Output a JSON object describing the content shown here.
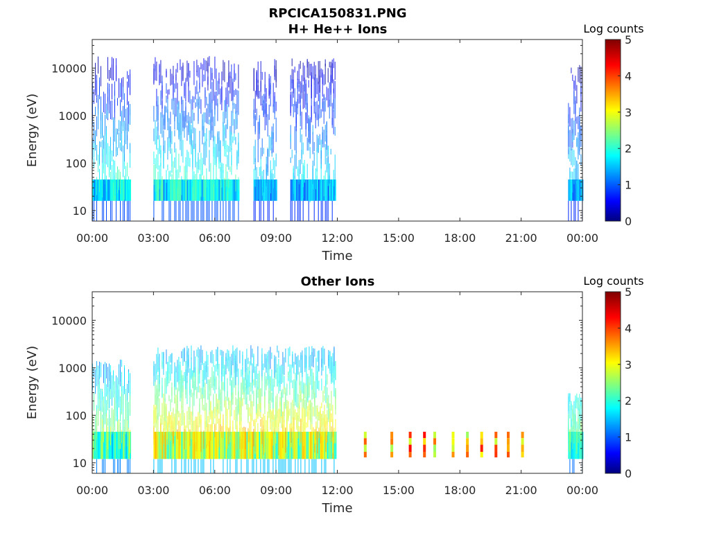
{
  "figure": {
    "title_line1": "RPCICA150831.PNG",
    "title_line2": "H+ He++ Ions",
    "bottom_title": "Other Ions"
  },
  "colors": {
    "colormap": [
      "#00007f",
      "#0000ff",
      "#007fff",
      "#00ffff",
      "#7fff7f",
      "#ffff00",
      "#ff7f00",
      "#ff0000",
      "#7f0000"
    ],
    "axis": "#262626"
  },
  "chart_data": [
    {
      "type": "heatmap",
      "title": "H+ He++ Ions",
      "xlabel": "Time",
      "ylabel": "Energy (eV)",
      "x_ticks": [
        "00:00",
        "03:00",
        "06:00",
        "09:00",
        "12:00",
        "15:00",
        "18:00",
        "21:00",
        "00:00"
      ],
      "x_range_hours": [
        0,
        24
      ],
      "y_scale": "log",
      "y_ticks": [
        "10",
        "100",
        "1000",
        "10000"
      ],
      "y_range_eV": [
        6,
        40000
      ],
      "colorbar_label": "Log counts",
      "colorbar_ticks": [
        "0",
        "1",
        "2",
        "3",
        "4",
        "5"
      ],
      "colorbar_range": [
        0,
        5
      ],
      "data_blocks": [
        {
          "start_h": 0.0,
          "end_h": 1.9,
          "max_energy_eV": 18000,
          "peak_log_counts": 2.2
        },
        {
          "start_h": 3.0,
          "end_h": 7.2,
          "max_energy_eV": 18000,
          "peak_log_counts": 2.3
        },
        {
          "start_h": 7.9,
          "end_h": 9.0,
          "max_energy_eV": 16000,
          "peak_log_counts": 1.8
        },
        {
          "start_h": 9.7,
          "end_h": 11.9,
          "max_energy_eV": 16000,
          "peak_log_counts": 1.9
        },
        {
          "start_h": 23.3,
          "end_h": 24.0,
          "max_energy_eV": 16000,
          "peak_log_counts": 1.8
        }
      ]
    },
    {
      "type": "heatmap",
      "title": "Other Ions",
      "xlabel": "Time",
      "ylabel": "Energy (eV)",
      "x_ticks": [
        "00:00",
        "03:00",
        "06:00",
        "09:00",
        "12:00",
        "15:00",
        "18:00",
        "21:00",
        "00:00"
      ],
      "x_range_hours": [
        0,
        24
      ],
      "y_scale": "log",
      "y_ticks": [
        "10",
        "100",
        "1000",
        "10000"
      ],
      "y_range_eV": [
        6,
        40000
      ],
      "colorbar_label": "Log counts",
      "colorbar_ticks": [
        "0",
        "1",
        "2",
        "3",
        "4",
        "5"
      ],
      "colorbar_range": [
        0,
        5
      ],
      "data_blocks": [
        {
          "start_h": 0.0,
          "end_h": 1.9,
          "max_energy_eV": 1500,
          "peak_log_counts": 2.8
        },
        {
          "start_h": 3.0,
          "end_h": 11.9,
          "max_energy_eV": 3000,
          "peak_log_counts": 3.5
        },
        {
          "start_h": 23.3,
          "end_h": 24.0,
          "max_energy_eV": 300,
          "peak_log_counts": 2.6
        }
      ],
      "bursts_h": [
        13.3,
        14.6,
        15.5,
        16.2,
        16.7,
        17.6,
        18.3,
        19.0,
        19.7,
        20.3,
        21.0
      ]
    }
  ]
}
